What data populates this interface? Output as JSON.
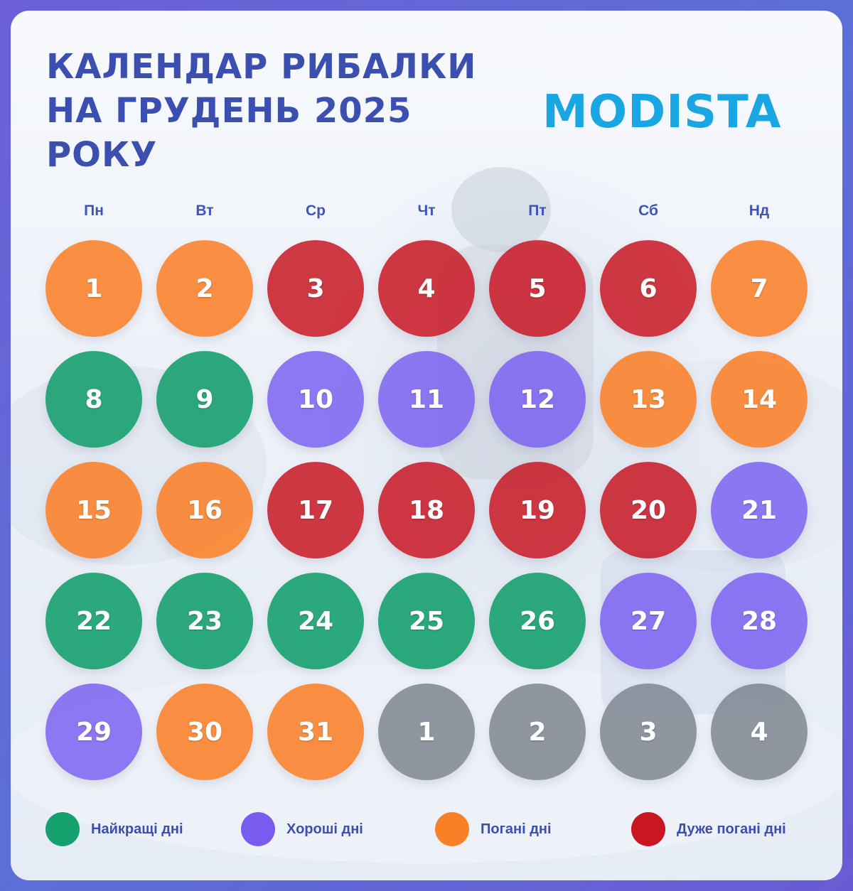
{
  "header": {
    "title_lines": [
      "КАЛЕНДАР РИБАЛКИ",
      "НА ГРУДЕНЬ 2025",
      "РОКУ"
    ],
    "logo_text": "MODISTA"
  },
  "weekdays": [
    "Пн",
    "Вт",
    "Ср",
    "Чт",
    "Пт",
    "Сб",
    "Нд"
  ],
  "calendar": {
    "days": [
      {
        "label": "1",
        "status": "bad"
      },
      {
        "label": "2",
        "status": "bad"
      },
      {
        "label": "3",
        "status": "very-bad"
      },
      {
        "label": "4",
        "status": "very-bad"
      },
      {
        "label": "5",
        "status": "very-bad"
      },
      {
        "label": "6",
        "status": "very-bad"
      },
      {
        "label": "7",
        "status": "bad"
      },
      {
        "label": "8",
        "status": "best"
      },
      {
        "label": "9",
        "status": "best"
      },
      {
        "label": "10",
        "status": "good"
      },
      {
        "label": "11",
        "status": "good"
      },
      {
        "label": "12",
        "status": "good"
      },
      {
        "label": "13",
        "status": "bad"
      },
      {
        "label": "14",
        "status": "bad"
      },
      {
        "label": "15",
        "status": "bad"
      },
      {
        "label": "16",
        "status": "bad"
      },
      {
        "label": "17",
        "status": "very-bad"
      },
      {
        "label": "18",
        "status": "very-bad"
      },
      {
        "label": "19",
        "status": "very-bad"
      },
      {
        "label": "20",
        "status": "very-bad"
      },
      {
        "label": "21",
        "status": "good"
      },
      {
        "label": "22",
        "status": "best"
      },
      {
        "label": "23",
        "status": "best"
      },
      {
        "label": "24",
        "status": "best"
      },
      {
        "label": "25",
        "status": "best"
      },
      {
        "label": "26",
        "status": "best"
      },
      {
        "label": "27",
        "status": "good"
      },
      {
        "label": "28",
        "status": "good"
      },
      {
        "label": "29",
        "status": "good"
      },
      {
        "label": "30",
        "status": "bad"
      },
      {
        "label": "31",
        "status": "bad"
      },
      {
        "label": "1",
        "status": "next-month"
      },
      {
        "label": "2",
        "status": "next-month"
      },
      {
        "label": "3",
        "status": "next-month"
      },
      {
        "label": "4",
        "status": "next-month"
      }
    ]
  },
  "legend": [
    {
      "label": "Найкращі дні",
      "status": "best",
      "color": "#16a06e"
    },
    {
      "label": "Хороші дні",
      "status": "good",
      "color": "#785cf0"
    },
    {
      "label": "Погані дні",
      "status": "bad",
      "color": "#fa8028"
    },
    {
      "label": "Дуже погані дні",
      "status": "very-bad",
      "color": "#c81622"
    }
  ],
  "colors": {
    "best": "#16a06e",
    "good": "#785cf0",
    "bad": "#fa8028",
    "very_bad": "#c81622",
    "next_month": "#787e8a",
    "title": "#3a4fb0",
    "logo": "#1aa6e3"
  }
}
